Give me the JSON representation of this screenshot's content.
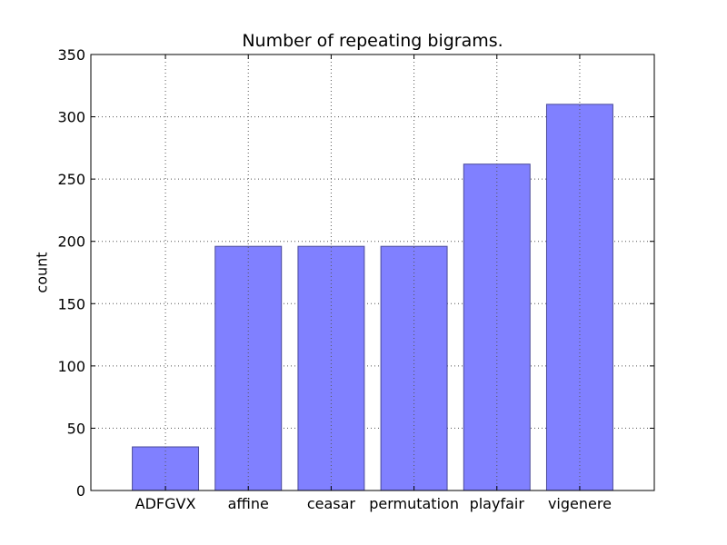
{
  "chart_data": {
    "type": "bar",
    "title": "Number of repeating bigrams.",
    "xlabel": "",
    "ylabel": "count",
    "categories": [
      "ADFGVX",
      "affine",
      "ceasar",
      "permutation",
      "playfair",
      "vigenere"
    ],
    "values": [
      35,
      196,
      196,
      196,
      262,
      310
    ],
    "ylim": [
      0,
      350
    ],
    "yticks": [
      0,
      50,
      100,
      150,
      200,
      250,
      300,
      350
    ],
    "grid": true,
    "legend": "none",
    "colors": {
      "bar_fill": "#8080ff",
      "bar_edge": "#4a4a9a",
      "grid": "#555555",
      "axes": "#000000"
    }
  }
}
